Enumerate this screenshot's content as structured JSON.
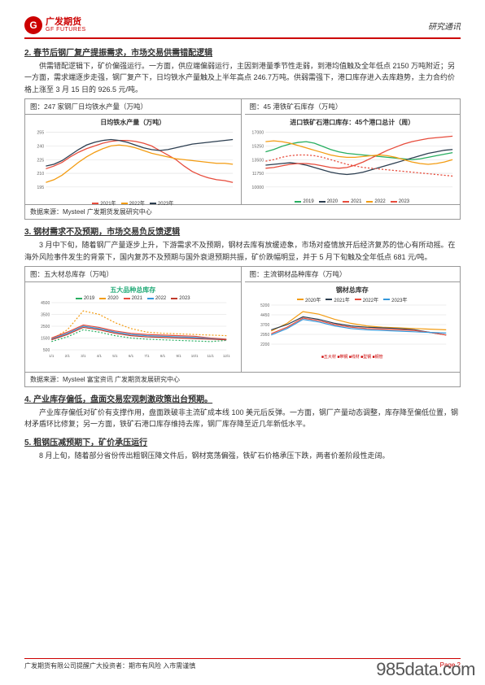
{
  "header": {
    "logo_cn": "广发期货",
    "logo_en": "GF FUTURES",
    "logo_letter": "G",
    "right": "研究通讯"
  },
  "section2": {
    "title": "2. 春节后钢厂复产提振需求，市场交易供需错配逻辑",
    "para": "供需错配逻辑下，矿价偏强运行。一方面，供应端偏弱运行，主因到港量季节性走弱，到港均值触及全年低点 2150 万吨附近；另一方面，需求端逐步走强，钢厂复产下，日均铁水产量触及上半年高点 246.7万吨。供弱需强下，港口库存进入去库趋势，主力合约价格上涨至 3 月 15 日的 926.5 元/吨。"
  },
  "charts1": {
    "left_label": "图：247 家钢厂日均铁水产量（万吨）",
    "left_title": "日均铁水产量（万吨）",
    "right_label": "图：45 港铁矿石库存（万吨）",
    "right_title": "进口铁矿石港口库存：45个港口总计（周）",
    "source": "数据来源：Mysteel 广发期货发展研究中心"
  },
  "chart1_left": {
    "ylim": [
      195,
      255
    ],
    "series": [
      {
        "color": "#e74c3c",
        "name": "2021年",
        "data": [
          215,
          218,
          222,
          228,
          233,
          237,
          240,
          243,
          245,
          246,
          246,
          245,
          243,
          240,
          235,
          230,
          225,
          218,
          212,
          208,
          205,
          203,
          202,
          200
        ]
      },
      {
        "color": "#f39c12",
        "name": "2022年",
        "data": [
          200,
          203,
          208,
          215,
          222,
          228,
          233,
          237,
          240,
          241,
          240,
          238,
          235,
          232,
          230,
          228,
          226,
          225,
          224,
          223,
          222,
          221,
          221,
          220
        ]
      },
      {
        "color": "#2c3e50",
        "name": "2023年",
        "data": [
          218,
          220,
          224,
          230,
          236,
          241,
          244,
          246,
          247,
          246,
          244,
          241,
          238,
          236,
          235,
          236,
          238,
          240,
          242,
          243,
          244,
          245,
          246,
          247
        ]
      }
    ],
    "legend": [
      "2021年",
      "2022年",
      "2023年"
    ]
  },
  "chart1_right": {
    "ylim": [
      10000,
      17000
    ],
    "series": [
      {
        "color": "#27ae60",
        "name": "2019",
        "data": [
          14500,
          14800,
          15200,
          15500,
          15700,
          15800,
          15600,
          15200,
          14800,
          14500,
          14300,
          14200,
          14100,
          14000,
          13900,
          13800,
          13700,
          13600,
          13500,
          13600,
          13800,
          14000,
          14200,
          14400
        ]
      },
      {
        "color": "#2c3e50",
        "name": "2020",
        "data": [
          12800,
          12900,
          13000,
          13100,
          13000,
          12800,
          12500,
          12200,
          11900,
          11700,
          11600,
          11700,
          11900,
          12200,
          12500,
          12800,
          13100,
          13400,
          13700,
          14000,
          14300,
          14500,
          14700,
          14800
        ]
      },
      {
        "color": "#e74c3c",
        "name": "2021",
        "data": [
          12400,
          12500,
          12700,
          12900,
          13000,
          13000,
          12900,
          12700,
          12500,
          12400,
          12500,
          12800,
          13200,
          13700,
          14200,
          14700,
          15100,
          15500,
          15800,
          16000,
          16200,
          16300,
          16400,
          16500
        ]
      },
      {
        "color": "#f39c12",
        "name": "2022",
        "data": [
          15800,
          15900,
          15800,
          15600,
          15300,
          15000,
          14700,
          14400,
          14100,
          13900,
          13800,
          13800,
          13900,
          14000,
          14100,
          14000,
          13800,
          13500,
          13200,
          13000,
          12900,
          13000,
          13200,
          13500
        ]
      },
      {
        "color": "#e74c3c",
        "name": "2023",
        "dash": true,
        "data": [
          13300,
          13500,
          13800,
          14000,
          14100,
          14100,
          14000,
          13800,
          13500,
          13200,
          12900,
          12700,
          12500,
          12400,
          12300,
          12200,
          12100,
          12000,
          11900,
          11800,
          11700,
          11600,
          11500,
          11400
        ]
      }
    ],
    "legend": [
      "2019",
      "2020",
      "2021",
      "2022",
      "2023"
    ]
  },
  "section3": {
    "title": "3. 钢材需求不及预期，市场交易负反馈逻辑",
    "para": "3 月中下旬，随着钢厂产量逐步上升，下游需求不及预期，钢材去库有放缓迹象，市场对疫情放开后经济复苏的信心有所动摇。在海外风险事件发生的背景下，国内复苏不及预期与国外衰退预期共振，矿价跌幅明显，并于 5 月下旬触及全年低点 681 元/吨。"
  },
  "charts2": {
    "left_label": "图：五大材总库存（万吨）",
    "left_title": "五大品种总库存",
    "right_label": "图：主流钢材品种库存（万吨）",
    "right_title": "钢材总库存",
    "source": "数据来源：Mysteel 富宝资讯 广发期货发展研究中心"
  },
  "chart2_left": {
    "ylim": [
      500,
      4500
    ],
    "xlabels": [
      "1/1",
      "2/1",
      "3/1",
      "4/1",
      "5/1",
      "6/1",
      "7/1",
      "8/1",
      "9/1",
      "10/1",
      "11/1",
      "12/1"
    ],
    "series": [
      {
        "color": "#27ae60",
        "dash": true,
        "name": "2019",
        "data": [
          1200,
          1600,
          2200,
          2000,
          1700,
          1500,
          1400,
          1350,
          1300,
          1250,
          1200,
          1300
        ]
      },
      {
        "color": "#f39c12",
        "dash": true,
        "name": "2020",
        "data": [
          1400,
          2200,
          3800,
          3500,
          2800,
          2300,
          2000,
          1900,
          1850,
          1800,
          1750,
          1700
        ]
      },
      {
        "color": "#e74c3c",
        "name": "2021",
        "data": [
          1500,
          2000,
          2600,
          2400,
          2100,
          1900,
          1800,
          1750,
          1700,
          1650,
          1500,
          1400
        ]
      },
      {
        "color": "#3498db",
        "name": "2022",
        "data": [
          1400,
          1900,
          2500,
          2300,
          2000,
          1800,
          1700,
          1650,
          1600,
          1550,
          1450,
          1350
        ]
      },
      {
        "color": "#c0392b",
        "name": "2023",
        "data": [
          1350,
          1800,
          2400,
          2200,
          1900,
          1700,
          1600,
          1550,
          1500,
          1450,
          1400,
          1350
        ]
      }
    ],
    "legend": [
      "2019",
      "2020",
      "2021",
      "2022",
      "2023"
    ]
  },
  "chart2_right": {
    "ylim": [
      2200,
      5200
    ],
    "series": [
      {
        "color": "#f39c12",
        "name": "2020年",
        "data": [
          3200,
          3800,
          4700,
          4500,
          4100,
          3800,
          3600,
          3500,
          3450,
          3400,
          3350,
          3300
        ]
      },
      {
        "color": "#2c3e50",
        "name": "2021年",
        "data": [
          3300,
          3700,
          4300,
          4100,
          3800,
          3600,
          3500,
          3450,
          3400,
          3300,
          3100,
          2900
        ]
      },
      {
        "color": "#e74c3c",
        "name": "2022年",
        "data": [
          3000,
          3500,
          4200,
          4000,
          3700,
          3500,
          3400,
          3350,
          3300,
          3250,
          3100,
          2900
        ]
      },
      {
        "color": "#3498db",
        "name": "2023年",
        "data": [
          2900,
          3400,
          4100,
          3900,
          3600,
          3400,
          3300,
          3250,
          3200,
          3150,
          3100,
          3050
        ]
      }
    ],
    "legend": [
      "2020年",
      "2021年",
      "2022年",
      "2023年"
    ],
    "sublegend": "■五大材 ■带钢 ■线材 ■型钢 ■钢管"
  },
  "section4": {
    "title": "4. 产业库存偏低，盘面交易宏观刺激政策出台预期。",
    "para": "产业库存偏低对矿价有支撑作用，盘面跌破非主流矿成本线 100 美元后反弹。一方面，钢厂产量动态调整，库存降至偏低位置，钢材矛盾环比修复；另一方面，铁矿石港口库存维持去库，钢厂库存降至近几年新低水平。"
  },
  "section5": {
    "title": "5. 粗钢压减预期下，矿价承压运行",
    "para": "8 月上旬，随着部分省份传出粗钢压降文件后，钢材宽荡偏强，铁矿石价格承压下跌，两者价差阶段性走阔。"
  },
  "footer": {
    "left": "广发期货有限公司提醒广大投资者：期市有风险 入市需谨慎",
    "right": "Page 2"
  },
  "watermark": "985data.com"
}
